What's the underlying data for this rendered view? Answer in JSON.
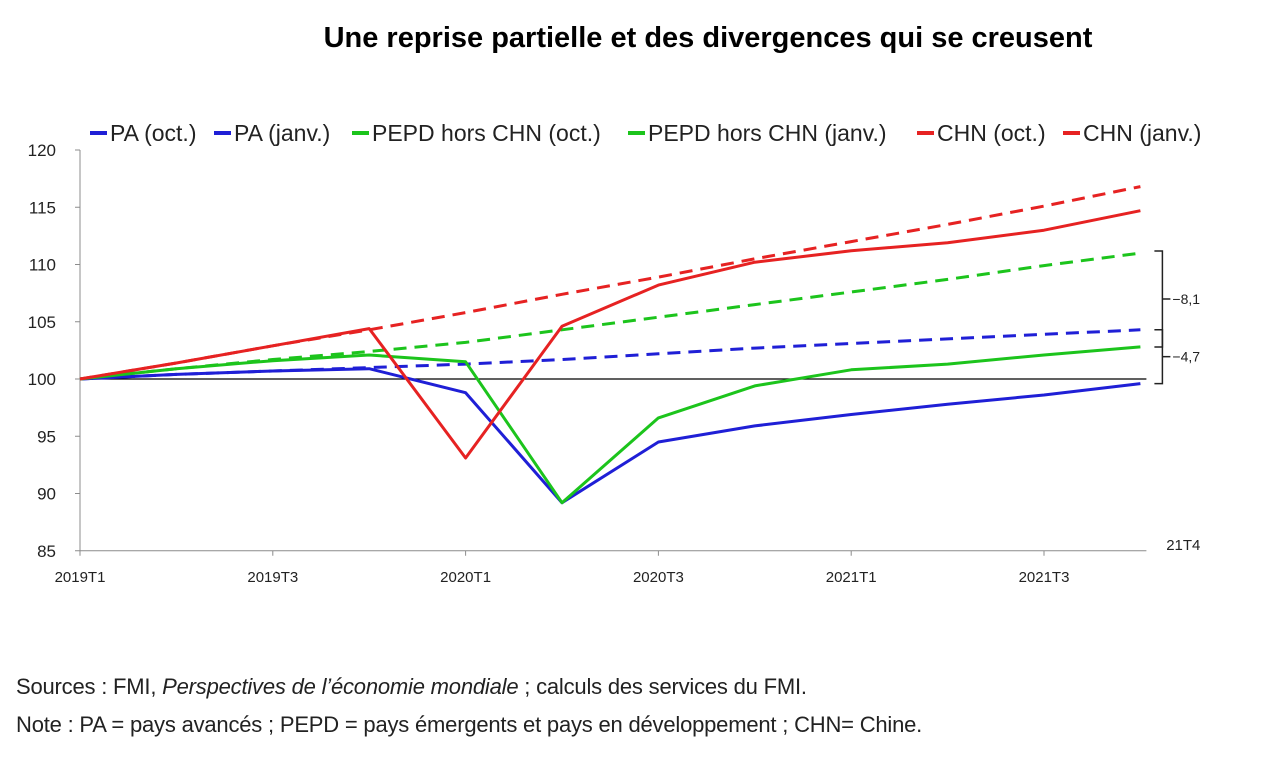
{
  "title": "Une reprise partielle et des divergences qui se creusent",
  "chart_data": {
    "type": "line",
    "x": [
      "2019T1",
      "2019T2",
      "2019T3",
      "2019T4",
      "2020T1",
      "2020T2",
      "2020T3",
      "2020T4",
      "2021T1",
      "2021T2",
      "2021T3",
      "2021T4"
    ],
    "tick_labels": [
      "2019T1",
      "2019T3",
      "2020T1",
      "2020T3",
      "2021T1",
      "2021T3"
    ],
    "tick_indices": [
      0,
      2,
      4,
      6,
      8,
      10
    ],
    "end_label": "21T4",
    "ylim": [
      85,
      120
    ],
    "yticks": [
      85,
      90,
      95,
      100,
      105,
      110,
      115,
      120
    ],
    "baseline": 100,
    "series": [
      {
        "name": "PA (oct.)",
        "color": "#1f1fd6",
        "dash": false,
        "values": [
          100,
          100.4,
          100.7,
          100.9,
          98.8,
          89.2,
          94.5,
          95.9,
          96.9,
          97.8,
          98.6,
          99.6
        ]
      },
      {
        "name": "PA (janv.)",
        "color": "#1f1fd6",
        "dash": true,
        "values": [
          100,
          100.4,
          100.7,
          101.0,
          101.3,
          101.7,
          102.2,
          102.7,
          103.1,
          103.5,
          103.9,
          104.3
        ]
      },
      {
        "name": "PEPD hors CHN (oct.)",
        "color": "#1cc41c",
        "dash": false,
        "values": [
          100,
          100.9,
          101.6,
          102.1,
          101.5,
          89.2,
          96.6,
          99.4,
          100.8,
          101.3,
          102.1,
          102.8
        ]
      },
      {
        "name": "PEPD hors CHN (janv.)",
        "color": "#1cc41c",
        "dash": true,
        "values": [
          100,
          100.9,
          101.7,
          102.4,
          103.2,
          104.3,
          105.4,
          106.5,
          107.6,
          108.7,
          109.9,
          111.0
        ]
      },
      {
        "name": "CHN (oct.)",
        "color": "#e62222",
        "dash": false,
        "values": [
          100,
          101.4,
          102.9,
          104.4,
          93.1,
          104.6,
          108.2,
          110.2,
          111.2,
          111.9,
          113.0,
          114.7
        ]
      },
      {
        "name": "CHN (janv.)",
        "color": "#e62222",
        "dash": true,
        "values": [
          100,
          101.4,
          102.9,
          104.3,
          105.8,
          107.4,
          108.9,
          110.5,
          112.0,
          113.5,
          115.1,
          116.8
        ]
      }
    ],
    "annotations": [
      {
        "label": "−8,1",
        "from": 111.0,
        "to": 102.8
      },
      {
        "label": "−4,7",
        "from": 104.3,
        "to": 99.6
      }
    ]
  },
  "notes": {
    "sources_prefix": "Sources : FMI, ",
    "sources_italic": "Perspectives de l’économie mondiale",
    "sources_suffix": " ; calculs des services du FMI.",
    "note": "Note : PA = pays avancés ; PEPD = pays émergents et pays en développement ; CHN= Chine."
  }
}
